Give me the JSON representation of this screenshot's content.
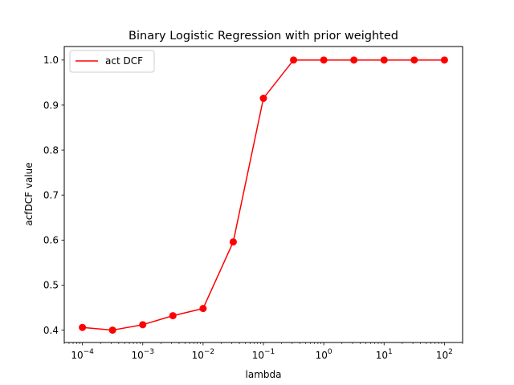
{
  "chart_data": {
    "type": "line",
    "title": "Binary Logistic Regression with prior weighted",
    "xlabel": "lambda",
    "ylabel": "acfDCF value",
    "xscale": "log",
    "xlim": [
      5e-05,
      200
    ],
    "ylim": [
      0.3725,
      1.03
    ],
    "x_ticks": [
      {
        "value": 0.0001,
        "base": "10",
        "exp": "−4"
      },
      {
        "value": 0.001,
        "base": "10",
        "exp": "−3"
      },
      {
        "value": 0.01,
        "base": "10",
        "exp": "−2"
      },
      {
        "value": 0.1,
        "base": "10",
        "exp": "−1"
      },
      {
        "value": 1,
        "base": "10",
        "exp": "0"
      },
      {
        "value": 10,
        "base": "10",
        "exp": "1"
      },
      {
        "value": 100,
        "base": "10",
        "exp": "2"
      }
    ],
    "y_ticks": [
      "0.4",
      "0.5",
      "0.6",
      "0.7",
      "0.8",
      "0.9",
      "1.0"
    ],
    "grid": false,
    "legend_position": "upper-left",
    "series": [
      {
        "name": "act DCF",
        "color": "#ff0000",
        "marker": "circle",
        "x": [
          0.0001,
          0.000316,
          0.001,
          0.00316,
          0.01,
          0.0316,
          0.1,
          0.316,
          1,
          3.16,
          10,
          31.6,
          100
        ],
        "y": [
          0.406,
          0.4,
          0.412,
          0.432,
          0.448,
          0.596,
          0.915,
          1.0,
          1.0,
          1.0,
          1.0,
          1.0,
          1.0
        ]
      }
    ]
  }
}
